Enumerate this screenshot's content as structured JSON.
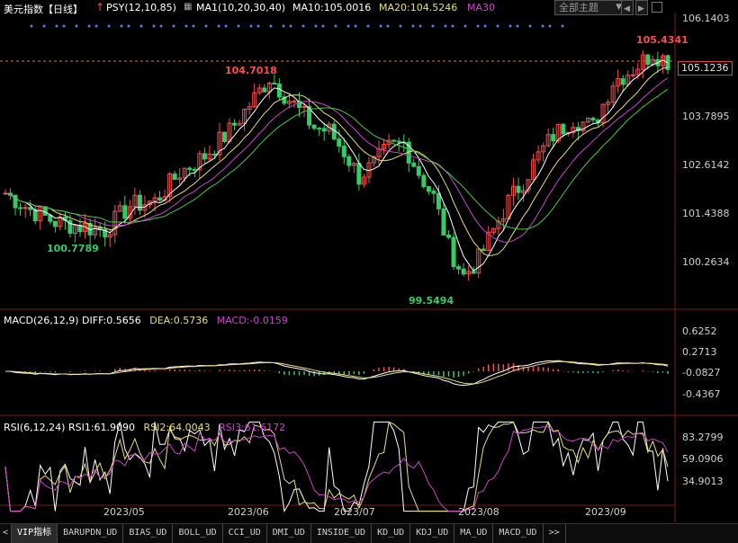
{
  "header": {
    "instrument": "美元指数【日线】",
    "psy": "PSY(12,10,85)",
    "ma_label": "MA1(10,20,30,40)",
    "ma10": "MA10:105.0016",
    "ma20": "MA20:104.5246",
    "ma30": "MA30",
    "theme_dropdown": "全部主题"
  },
  "price_axis": [
    "106.1403",
    "103.7895",
    "102.6142",
    "101.4388",
    "100.2634"
  ],
  "current_price": "105.1236",
  "annotations": {
    "high1": "104.7018",
    "high2": "105.4341",
    "low1": "100.7789",
    "low2": "99.5494"
  },
  "macd": {
    "title": "MACD(26,12,9)",
    "diff": "DIFF:0.5656",
    "dea": "DEA:0.5736",
    "macd": "MACD:-0.0159",
    "axis": [
      "0.6252",
      "0.2713",
      "-0.0827",
      "-0.4367"
    ]
  },
  "rsi": {
    "title": "RSI(6,12,24)",
    "rsi1": "RSI1:61.9090",
    "rsi2": "RSI2:64.0043",
    "rsi3": "RSI3:61.6172",
    "axis": [
      "83.2799",
      "59.0906",
      "34.9013"
    ]
  },
  "dates": [
    "2023/05",
    "2023/06",
    "2023/07",
    "2023/08",
    "2023/09"
  ],
  "tabs": [
    "VIP指标",
    "BARUPDN_UD",
    "BIAS_UD",
    "BOLL_UD",
    "CCI_UD",
    "DMI_UD",
    "INSIDE_UD",
    "KD_UD",
    "KDJ_UD",
    "MA_UD",
    "MACD_UD",
    ">>"
  ],
  "colors": {
    "up": "#ff4b4b",
    "down": "#33cc66",
    "ma10": "#ffffff",
    "ma20": "#e8e070",
    "ma30": "#cc44cc",
    "ma40": "#44cc44",
    "diff": "#ffffff",
    "dea": "#e8e070"
  }
}
